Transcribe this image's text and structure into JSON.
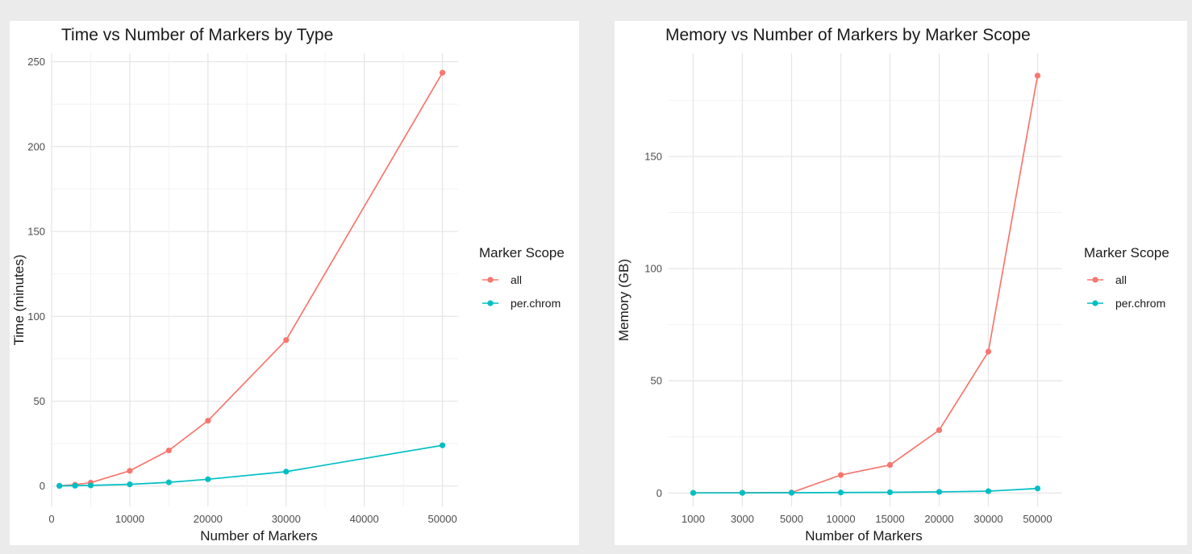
{
  "chart_data": [
    {
      "type": "line",
      "title": "Time vs Number of Markers by Type",
      "xlabel": "Number of Markers",
      "ylabel": "Time (minutes)",
      "x_scale": "continuous",
      "xlim": [
        0,
        52000
      ],
      "ylim": [
        -12,
        255
      ],
      "x_ticks": [
        0,
        10000,
        20000,
        30000,
        40000,
        50000
      ],
      "x_tick_labels": [
        "0",
        "10000",
        "20000",
        "30000",
        "40000",
        "50000"
      ],
      "y_ticks": [
        0,
        50,
        100,
        150,
        200,
        250
      ],
      "y_tick_labels": [
        "0",
        "50",
        "100",
        "150",
        "200",
        "250"
      ],
      "grid": true,
      "legend": {
        "title": "Marker Scope",
        "position": "right"
      },
      "x": [
        1000,
        3000,
        5000,
        10000,
        15000,
        20000,
        30000,
        50000
      ],
      "series": [
        {
          "name": "all",
          "color": "#f8766d",
          "values": [
            0.2,
            0.8,
            2.0,
            9.0,
            21.0,
            38.5,
            86.0,
            243.5
          ]
        },
        {
          "name": "per.chrom",
          "color": "#00bfc4",
          "values": [
            0.1,
            0.2,
            0.4,
            1.0,
            2.2,
            4.0,
            8.5,
            24.0
          ]
        }
      ]
    },
    {
      "type": "line",
      "title": "Memory vs Number of Markers by Marker Scope",
      "xlabel": "Number of Markers",
      "ylabel": "Memory (GB)",
      "x_scale": "categorical",
      "categories": [
        "1000",
        "3000",
        "5000",
        "10000",
        "15000",
        "20000",
        "30000",
        "50000"
      ],
      "ylim": [
        -6,
        196
      ],
      "y_ticks": [
        0,
        50,
        100,
        150
      ],
      "y_tick_labels": [
        "0",
        "50",
        "100",
        "150"
      ],
      "grid": true,
      "legend": {
        "title": "Marker Scope",
        "position": "right"
      },
      "series": [
        {
          "name": "all",
          "color": "#f8766d",
          "values": [
            0.05,
            0.1,
            0.2,
            8.0,
            12.5,
            28.0,
            63.0,
            186.0
          ]
        },
        {
          "name": "per.chrom",
          "color": "#00bfc4",
          "values": [
            0.05,
            0.05,
            0.1,
            0.2,
            0.3,
            0.5,
            0.8,
            2.0
          ]
        }
      ]
    }
  ]
}
